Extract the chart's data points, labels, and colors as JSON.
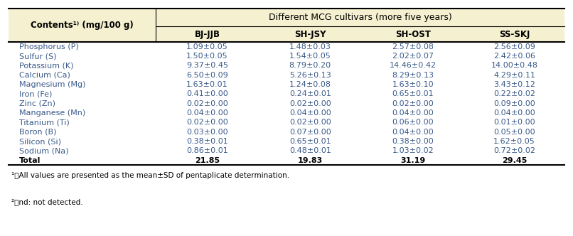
{
  "header_bg": "#f5f0d0",
  "header_text_color": "#000000",
  "body_bg": "#ffffff",
  "body_text_color": "#3a5a8a",
  "total_text_color": "#000000",
  "footnote_color": "#000000",
  "col0_header": "Contents¹⧴ (mg/100 g)",
  "span_header": "Different MCG cultivars (more five years)",
  "col_headers": [
    "BJ-JJB",
    "SH-JSY",
    "SH-OST",
    "SS-SKJ"
  ],
  "rows": [
    [
      "Phosphorus (P)",
      "1.09±0.05",
      "1.48±0.03",
      "2.57±0.08",
      "2.56±0.09"
    ],
    [
      "Sulfur (S)",
      "1.50±0.05",
      "1.54±0.05",
      "2.02±0.07",
      "2.42±0.06"
    ],
    [
      "Potassium (K)",
      "9.37±0.45",
      "8.79±0.20",
      "14.46±0.42",
      "14.00±0.48"
    ],
    [
      "Calcium (Ca)",
      "6.50±0.09",
      "5.26±0.13",
      "8.29±0.13",
      "4.29±0.11"
    ],
    [
      "Magnesium (Mg)",
      "1.63±0.01",
      "1.24±0.08",
      "1.63±0.10",
      "3.43±0.12"
    ],
    [
      "Iron (Fe)",
      "0.41±0.00",
      "0.24±0.01",
      "0.65±0.01",
      "0.22±0.02"
    ],
    [
      "Zinc (Zn)",
      "0.02±0.00",
      "0.02±0.00",
      "0.02±0.00",
      "0.09±0.00"
    ],
    [
      "Manganese (Mn)",
      "0.04±0.00",
      "0.04±0.00",
      "0.04±0.00",
      "0.04±0.00"
    ],
    [
      "Titanium (Ti)",
      "0.02±0.00",
      "0.02±0.00",
      "0.06±0.00",
      "0.01±0.00"
    ],
    [
      "Boron (B)",
      "0.03±0.00",
      "0.07±0.00",
      "0.04±0.00",
      "0.05±0.00"
    ],
    [
      "Silicon (Si)",
      "0.38±0.01",
      "0.65±0.01",
      "0.38±0.00",
      "1.62±0.05"
    ],
    [
      "Sodium (Na)",
      "0.86±0.01",
      "0.48±0.01",
      "1.03±0.02",
      "0.72±0.02"
    ],
    [
      "Total",
      "21.85",
      "19.83",
      "31.19",
      "29.45"
    ]
  ],
  "footnotes": [
    "¹⧴All values are presented as the mean±SD of pentaplicate determination.",
    "²⧴nd: not detected."
  ],
  "figsize": [
    8.06,
    3.32
  ],
  "dpi": 100
}
